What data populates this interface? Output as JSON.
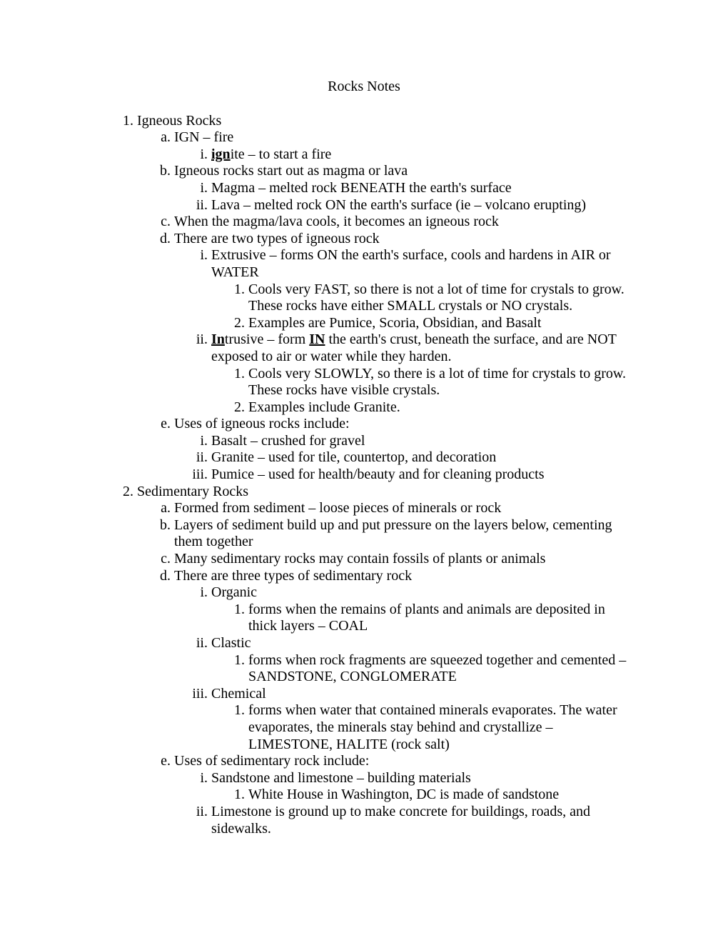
{
  "title": "Rocks Notes",
  "s1": {
    "h": "Igneous Rocks",
    "a": "IGN – fire",
    "a_i_pre": "ign",
    "a_i_post": "ite – to start a fire",
    "b": "Igneous rocks start out as magma or lava",
    "b_i": "Magma – melted rock BENEATH the earth's surface",
    "b_ii": "Lava – melted rock ON the earth's surface (ie – volcano erupting)",
    "c": "When the magma/lava cools, it becomes an igneous rock",
    "d": "There are two types of igneous rock",
    "d_i": "Extrusive – forms ON the earth's surface, cools and hardens in AIR or WATER",
    "d_i_1": "Cools very FAST, so there is not a lot of time for crystals to grow. These rocks have either SMALL crystals or NO crystals.",
    "d_i_2": "Examples are Pumice, Scoria, Obsidian, and Basalt",
    "d_ii_pre": "In",
    "d_ii_mid1": "trusive – form ",
    "d_ii_mid2": "IN",
    "d_ii_post": " the earth's crust, beneath the surface, and are NOT exposed to air or water while they harden.",
    "d_ii_1": "Cools very SLOWLY, so there is a lot of time for crystals to grow.  These rocks have visible crystals.",
    "d_ii_2": "Examples include Granite.",
    "e": "Uses of igneous rocks include:",
    "e_i": "Basalt – crushed for gravel",
    "e_ii": "Granite – used for tile, countertop, and decoration",
    "e_iii": "Pumice – used for health/beauty and for cleaning products"
  },
  "s2": {
    "h": "Sedimentary Rocks",
    "a": "Formed from sediment – loose pieces of minerals or rock",
    "b": "Layers of sediment build up and put pressure on the layers below, cementing them together",
    "c": "Many sedimentary rocks may contain fossils of plants or animals",
    "d": "There are three types of sedimentary rock",
    "d_i": "Organic",
    "d_i_1": "forms when the remains of plants and animals are deposited in thick layers – COAL",
    "d_ii": "Clastic",
    "d_ii_1": "forms when rock fragments are squeezed together and cemented – SANDSTONE, CONGLOMERATE",
    "d_iii": "Chemical",
    "d_iii_1": "forms when water that contained minerals evaporates.  The water evaporates, the minerals stay behind and crystallize – LIMESTONE, HALITE (rock salt)",
    "e": "Uses of sedimentary rock include:",
    "e_i": "Sandstone and limestone – building materials",
    "e_i_1": "White House in Washington, DC is made of sandstone",
    "e_ii": "Limestone is ground up to make concrete for buildings, roads, and sidewalks."
  }
}
